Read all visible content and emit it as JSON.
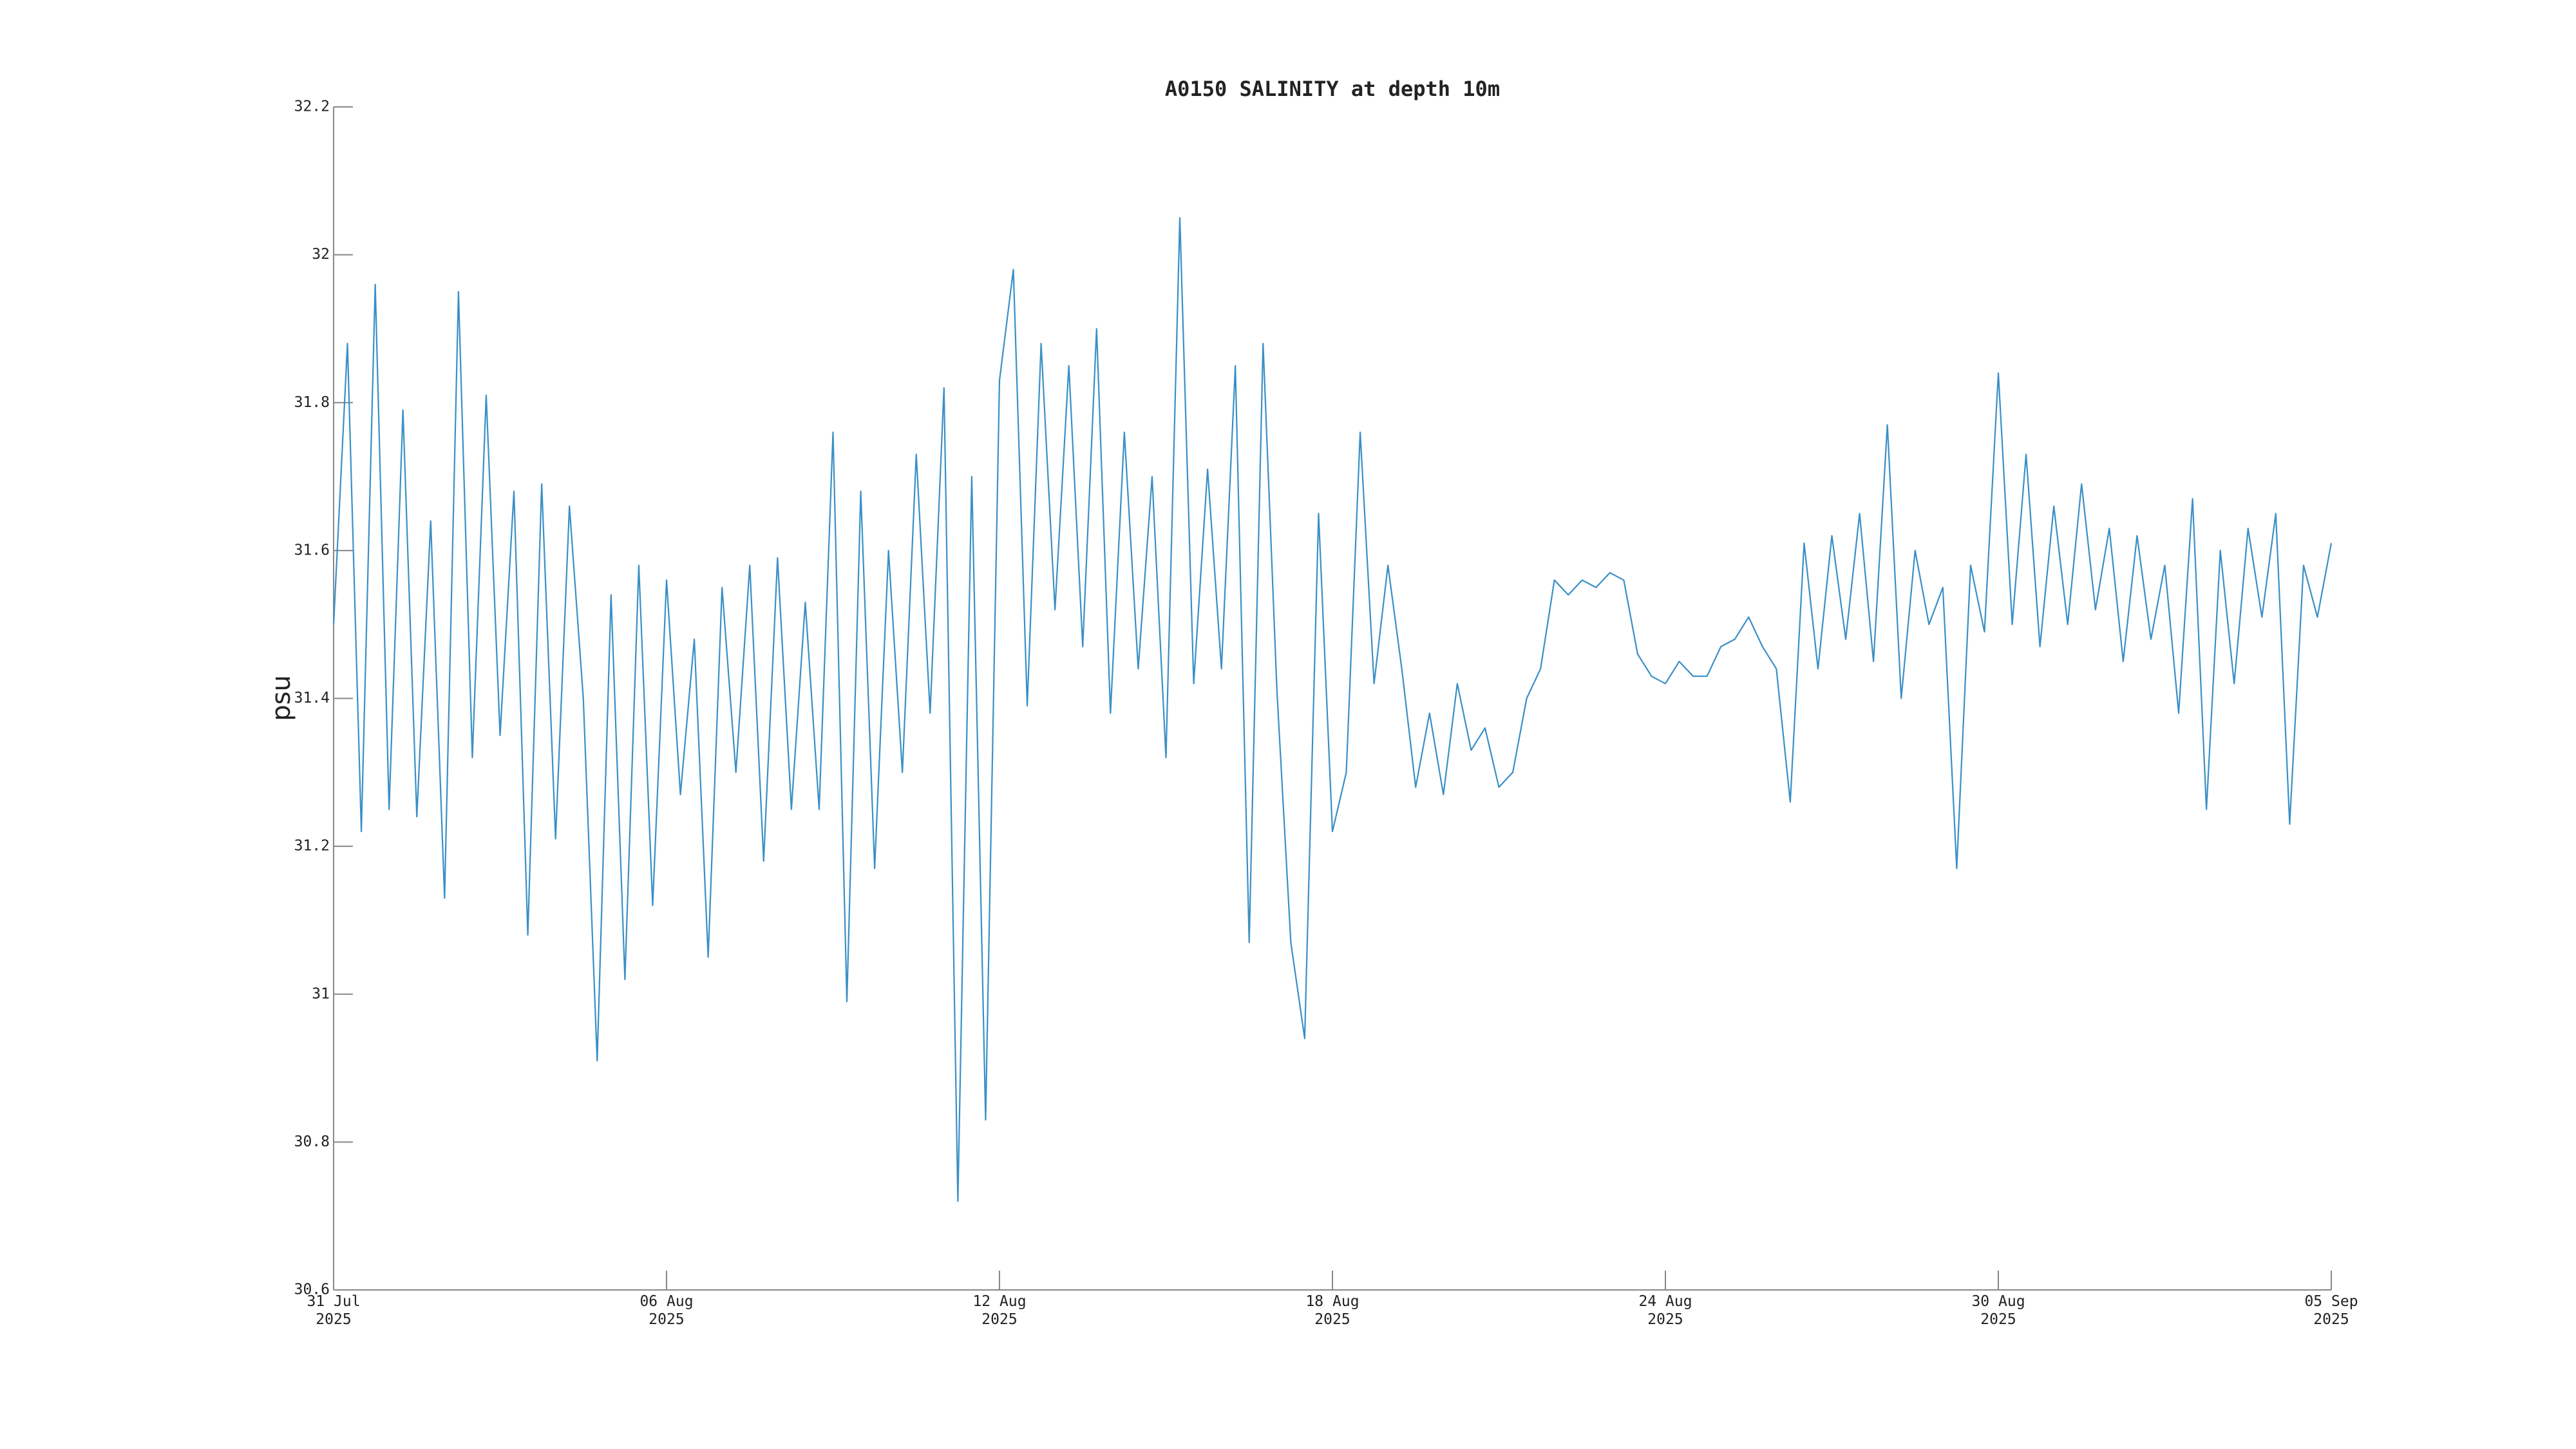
{
  "chart_data": {
    "type": "line",
    "title": "A0150 SALINITY at depth 10m",
    "y_label": "psu",
    "color": "#3a8fc7",
    "xlim": [
      0,
      36
    ],
    "xticks": [
      {
        "value": 0,
        "label": "31 Jul\n2025"
      },
      {
        "value": 6,
        "label": "06 Aug\n2025"
      },
      {
        "value": 12,
        "label": "12 Aug\n2025"
      },
      {
        "value": 18,
        "label": "18 Aug\n2025"
      },
      {
        "value": 24,
        "label": "24 Aug\n2025"
      },
      {
        "value": 30,
        "label": "30 Aug\n2025"
      },
      {
        "value": 36,
        "label": "05 Sep\n2025"
      }
    ],
    "ylim": [
      30.6,
      32.2
    ],
    "yticks": [
      30.6,
      30.8,
      31,
      31.2,
      31.4,
      31.6,
      31.8,
      32,
      32.2
    ],
    "x": [
      0,
      0.25,
      0.5,
      0.75,
      1,
      1.25,
      1.5,
      1.75,
      2,
      2.25,
      2.5,
      2.75,
      3,
      3.25,
      3.5,
      3.75,
      4,
      4.25,
      4.5,
      4.75,
      5,
      5.25,
      5.5,
      5.75,
      6,
      6.25,
      6.5,
      6.75,
      7,
      7.25,
      7.5,
      7.75,
      8,
      8.25,
      8.5,
      8.75,
      9,
      9.25,
      9.5,
      9.75,
      10,
      10.25,
      10.5,
      10.75,
      11,
      11.25,
      11.5,
      11.75,
      12,
      12.25,
      12.5,
      12.75,
      13,
      13.25,
      13.5,
      13.75,
      14,
      14.25,
      14.5,
      14.75,
      15,
      15.25,
      15.5,
      15.75,
      16,
      16.25,
      16.5,
      16.75,
      17,
      17.25,
      17.5,
      17.75,
      18,
      18.25,
      18.5,
      18.75,
      19,
      19.25,
      19.5,
      19.75,
      20,
      20.25,
      20.5,
      20.75,
      21,
      21.25,
      21.5,
      21.75,
      22,
      22.25,
      22.5,
      22.75,
      23,
      23.25,
      23.5,
      23.75,
      24,
      24.25,
      24.5,
      24.75,
      25,
      25.25,
      25.5,
      25.75,
      26,
      26.25,
      26.5,
      26.75,
      27,
      27.25,
      27.5,
      27.75,
      28,
      28.25,
      28.5,
      28.75,
      29,
      29.25,
      29.5,
      29.75,
      30,
      30.25,
      30.5,
      30.75,
      31,
      31.25,
      31.5,
      31.75,
      32,
      32.25,
      32.5,
      32.75,
      33,
      33.25,
      33.5,
      33.75,
      34,
      34.25,
      34.5,
      34.75,
      35,
      35.25,
      35.5,
      35.75,
      36
    ],
    "values": [
      31.5,
      31.88,
      31.22,
      31.96,
      31.25,
      31.79,
      31.24,
      31.64,
      31.13,
      31.95,
      31.32,
      31.81,
      31.35,
      31.68,
      31.08,
      31.69,
      31.21,
      31.66,
      31.4,
      30.91,
      31.54,
      31.02,
      31.58,
      31.12,
      31.56,
      31.27,
      31.48,
      31.05,
      31.55,
      31.3,
      31.58,
      31.18,
      31.59,
      31.25,
      31.53,
      31.25,
      31.76,
      30.99,
      31.68,
      31.17,
      31.6,
      31.3,
      31.73,
      31.38,
      31.82,
      30.72,
      31.7,
      30.83,
      31.83,
      31.98,
      31.39,
      31.88,
      31.52,
      31.85,
      31.47,
      31.9,
      31.38,
      31.76,
      31.44,
      31.7,
      31.32,
      32.05,
      31.42,
      31.71,
      31.44,
      31.85,
      31.07,
      31.88,
      31.41,
      31.07,
      30.94,
      31.65,
      31.22,
      31.3,
      31.76,
      31.42,
      31.58,
      31.44,
      31.28,
      31.38,
      31.27,
      31.42,
      31.33,
      31.36,
      31.28,
      31.3,
      31.4,
      31.44,
      31.56,
      31.54,
      31.56,
      31.55,
      31.57,
      31.56,
      31.46,
      31.43,
      31.42,
      31.45,
      31.43,
      31.43,
      31.47,
      31.48,
      31.51,
      31.47,
      31.44,
      31.26,
      31.61,
      31.44,
      31.62,
      31.48,
      31.65,
      31.45,
      31.77,
      31.4,
      31.6,
      31.5,
      31.55,
      31.17,
      31.58,
      31.49,
      31.84,
      31.5,
      31.73,
      31.47,
      31.66,
      31.5,
      31.69,
      31.52,
      31.63,
      31.45,
      31.62,
      31.48,
      31.58,
      31.38,
      31.67,
      31.25,
      31.6,
      31.42,
      31.63,
      31.51,
      31.65,
      31.23,
      31.58,
      31.51,
      31.61
    ]
  }
}
